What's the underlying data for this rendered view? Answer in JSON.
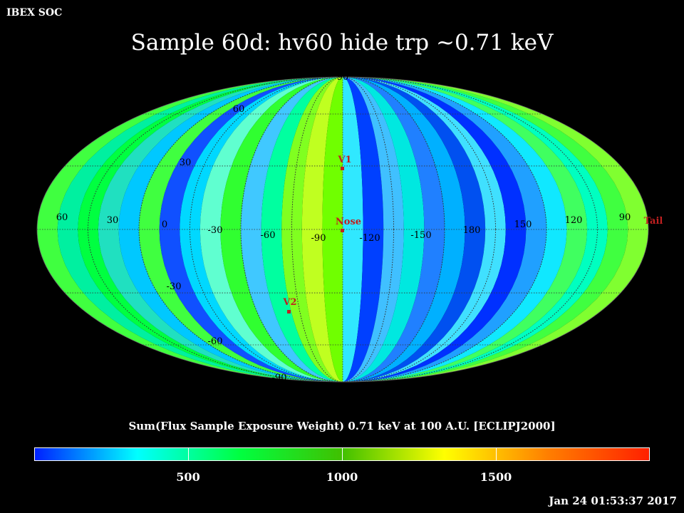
{
  "header": {
    "brand": "IBEX SOC",
    "title": "Sample 60d: hv60 hide trp ~0.71 keV"
  },
  "map": {
    "projection": "Mollweide",
    "frame": "ECLIPJ2000",
    "longitude_labels": [
      "60",
      "30",
      "0",
      "-30",
      "-60",
      "-90",
      "-120",
      "-150",
      "180",
      "150",
      "120",
      "90"
    ],
    "latitude_labels": [
      "90",
      "60",
      "30",
      "-30",
      "-60",
      "-90"
    ],
    "markers": [
      {
        "label": "V1",
        "color": "#ff3333"
      },
      {
        "label": "Nose",
        "color": "#ff3333"
      },
      {
        "label": "V2",
        "color": "#ff3333"
      },
      {
        "label": "Tail",
        "color": "#ff3333"
      }
    ]
  },
  "colorbar": {
    "title": "Sum(Flux Sample Exposure Weight)  0.71 keV at 100 A.U. [ECLIPJ2000]",
    "tick_labels": [
      "500",
      "1000",
      "1500"
    ],
    "range": [
      0,
      2000
    ],
    "colors": [
      "#0020ff",
      "#00ffff",
      "#00ff40",
      "#40c000",
      "#ffff00",
      "#ff8000",
      "#ff2000"
    ]
  },
  "footer": {
    "timestamp": "Jan 24 01:53:37 2017"
  }
}
